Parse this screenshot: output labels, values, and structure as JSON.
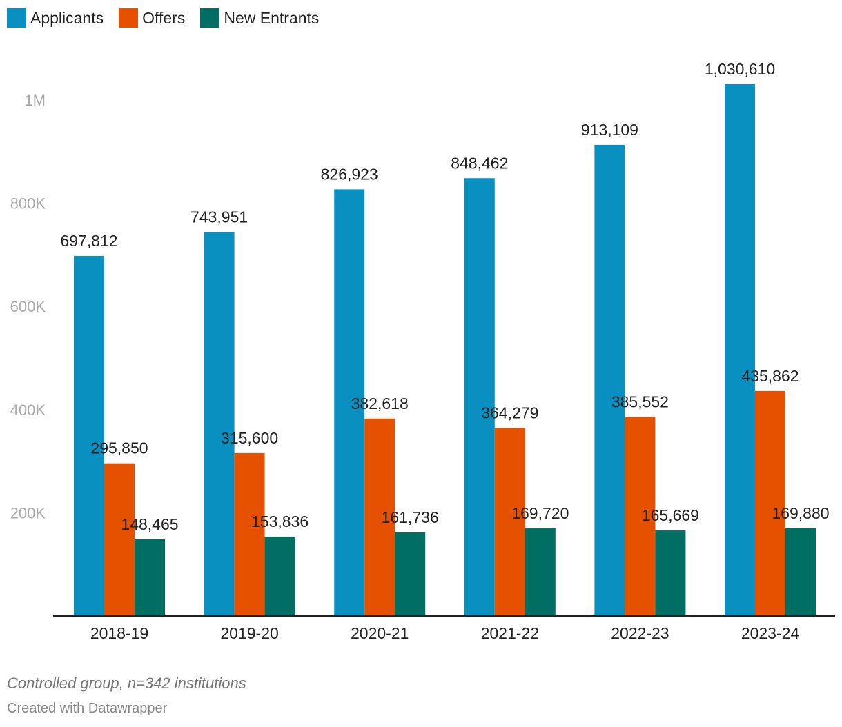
{
  "chart_data": {
    "type": "bar",
    "categories": [
      "2018-19",
      "2019-20",
      "2020-21",
      "2021-22",
      "2022-23",
      "2023-24"
    ],
    "series": [
      {
        "name": "Applicants",
        "color": "#0a8fc1",
        "values": [
          697812,
          743951,
          826923,
          848462,
          913109,
          1030610
        ],
        "labels": [
          "697,812",
          "743,951",
          "826,923",
          "848,462",
          "913,109",
          "1,030,610"
        ]
      },
      {
        "name": "Offers",
        "color": "#e65100",
        "values": [
          295850,
          315600,
          382618,
          364279,
          385552,
          435862
        ],
        "labels": [
          "295,850",
          "315,600",
          "382,618",
          "364,279",
          "385,552",
          "435,862"
        ]
      },
      {
        "name": "New Entrants",
        "color": "#006e63",
        "values": [
          148465,
          153836,
          161736,
          169720,
          165669,
          169880
        ],
        "labels": [
          "148,465",
          "153,836",
          "161,736",
          "169,720",
          "165,669",
          "169,880"
        ]
      }
    ],
    "yticks": [
      {
        "value": 200000,
        "label": "200K"
      },
      {
        "value": 400000,
        "label": "400K"
      },
      {
        "value": 600000,
        "label": "600K"
      },
      {
        "value": 800000,
        "label": "800K"
      },
      {
        "value": 1000000,
        "label": "1M"
      }
    ],
    "ylim": [
      0,
      1030610
    ],
    "grid": false,
    "legend": "top-left"
  },
  "notes": "Controlled group, n=342 institutions",
  "credit": "Created with Datawrapper"
}
